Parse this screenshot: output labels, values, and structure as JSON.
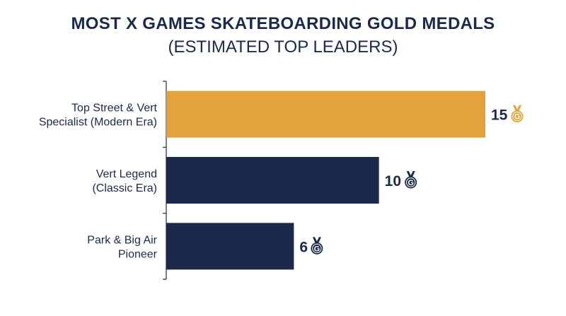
{
  "chart_data": {
    "type": "bar",
    "orientation": "horizontal",
    "title": "MOST X GAMES SKATEBOARDING GOLD MEDALS",
    "subtitle": "(ESTIMATED TOP LEADERS)",
    "categories": [
      [
        "Top Street & Vert",
        "Specialist (Modern Era)"
      ],
      [
        "Vert Legend",
        "(Classic Era)"
      ],
      [
        "Park & Big Air",
        "Pioneer"
      ]
    ],
    "values": [
      15,
      10,
      6
    ],
    "value_labels": [
      "15",
      "10",
      "6"
    ],
    "xlim": [
      0,
      17.4
    ],
    "grid": false,
    "bar_colors": [
      "#e3a33a",
      "#1b2a4a",
      "#1b2a4a"
    ],
    "medal_colors": [
      "#e3a33a",
      "#1b2a4a",
      "#1b2a4a"
    ],
    "medal_icon": "medal-icon",
    "medal_letter": "G"
  }
}
